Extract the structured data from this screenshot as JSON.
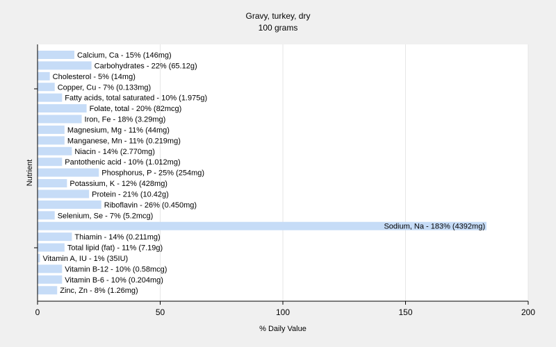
{
  "chart_data": {
    "type": "bar",
    "orientation": "horizontal",
    "title": "Gravy, turkey, dry",
    "subtitle": "100 grams",
    "xlabel": "% Daily Value",
    "ylabel": "Nutrient",
    "xlim": [
      0,
      200
    ],
    "xticks": [
      0,
      50,
      100,
      150,
      200
    ],
    "grid": "vertical",
    "bar_color": "#c6dcf7",
    "categories": [
      "Calcium, Ca - 15% (146mg)",
      "Carbohydrates - 22% (65.12g)",
      "Cholesterol - 5% (14mg)",
      "Copper, Cu - 7% (0.133mg)",
      "Fatty acids, total saturated - 10% (1.975g)",
      "Folate, total - 20% (82mcg)",
      "Iron, Fe - 18% (3.29mg)",
      "Magnesium, Mg - 11% (44mg)",
      "Manganese, Mn - 11% (0.219mg)",
      "Niacin - 14% (2.770mg)",
      "Pantothenic acid - 10% (1.012mg)",
      "Phosphorus, P - 25% (254mg)",
      "Potassium, K - 12% (428mg)",
      "Protein - 21% (10.42g)",
      "Riboflavin - 26% (0.450mg)",
      "Selenium, Se - 7% (5.2mcg)",
      "Sodium, Na - 183% (4392mg)",
      "Thiamin - 14% (0.211mg)",
      "Total lipid (fat) - 11% (7.19g)",
      "Vitamin A, IU - 1% (35IU)",
      "Vitamin B-12 - 10% (0.58mcg)",
      "Vitamin B-6 - 10% (0.204mg)",
      "Zinc, Zn - 8% (1.26mg)"
    ],
    "values": [
      15,
      22,
      5,
      7,
      10,
      20,
      18,
      11,
      11,
      14,
      10,
      25,
      12,
      21,
      26,
      7,
      183,
      14,
      11,
      1,
      10,
      10,
      8
    ]
  }
}
